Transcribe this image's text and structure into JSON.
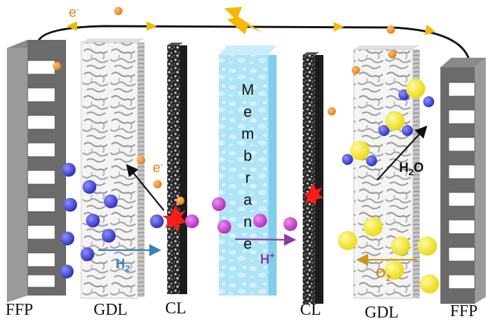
{
  "labels": {
    "electron_top": "e",
    "electron_top_sup": "-",
    "electron_mid": "e",
    "electron_mid_sup": "-",
    "membrane_letters": [
      "M",
      "e",
      "m",
      "b",
      "r",
      "a",
      "n",
      "e"
    ],
    "h2_main": "H",
    "h2_sub": "2",
    "hplus_main": "H",
    "hplus_sup": "+",
    "h2o_main": "H",
    "h2o_sub": "2",
    "h2o_tail": "O",
    "o2_main": "O",
    "o2_sub": "2"
  },
  "captions": {
    "ffp_left": "FFP",
    "gdl_left": "GDL",
    "cl_left": "CL",
    "cl_right": "CL",
    "gdl_right": "GDL",
    "ffp_right": "FFP"
  },
  "colors": {
    "hydrogen": "#3b3fd0",
    "proton": "#c23ad0",
    "oxygen": "#f2e318",
    "electron": "#f08a1a",
    "catalyst_site": "#ff1a1a",
    "membrane": "#aee4f6",
    "ffp": "#6b6b6b",
    "h2_arrow": "#3a7fb8",
    "hplus_arrow": "#8a3aa6",
    "o2_arrow": "#c8961e",
    "circuit_arrow": "#f5b800",
    "lightning": "#f5b800"
  },
  "icons": {
    "lightning": "lightning-bolt-icon",
    "catalyst": "reaction-site-icon"
  }
}
